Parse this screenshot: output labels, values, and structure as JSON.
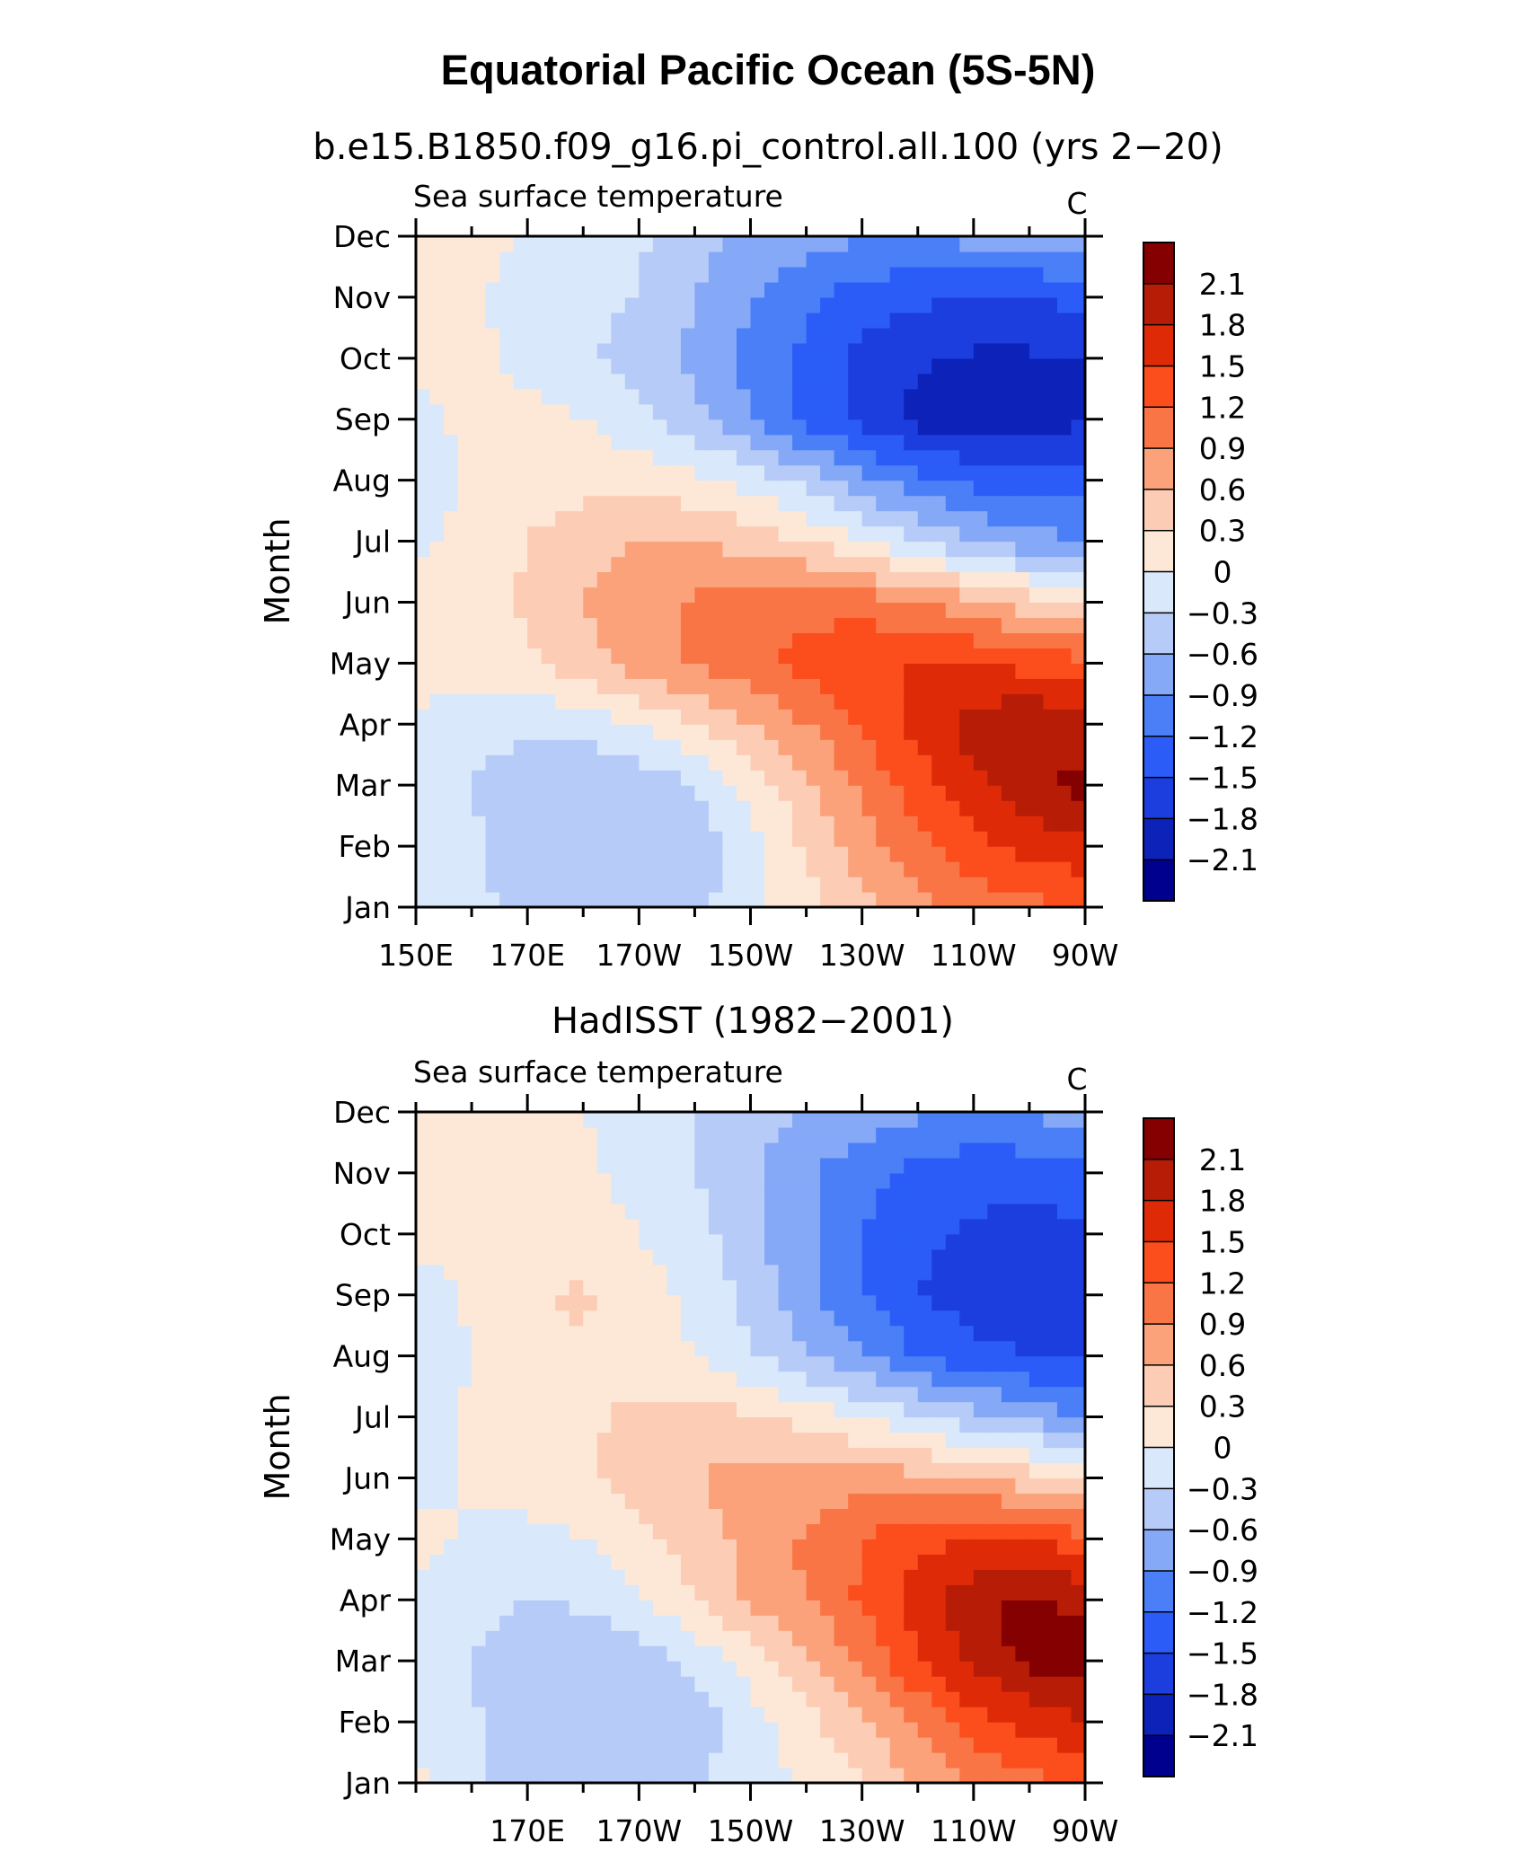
{
  "figure": {
    "title": "Equatorial Pacific Ocean (5S-5N)"
  },
  "chart_data": [
    {
      "type": "heatmap",
      "subtitle": "b.e15.B1850.f09_g16.pi_control.all.100 (yrs 2−20)",
      "left_label": "Sea surface temperature",
      "units_label": "C",
      "ylabel": "Month",
      "xlabel": "",
      "y_ticks": [
        "Jan",
        "Feb",
        "Mar",
        "Apr",
        "May",
        "Jun",
        "Jul",
        "Aug",
        "Sep",
        "Oct",
        "Nov",
        "Dec"
      ],
      "x_ticks": [
        {
          "lon": 150,
          "label": "150E"
        },
        {
          "lon": 170,
          "label": "170E"
        },
        {
          "lon": 190,
          "label": "170W"
        },
        {
          "lon": 210,
          "label": "150W"
        },
        {
          "lon": 230,
          "label": "130W"
        },
        {
          "lon": 250,
          "label": "110W"
        },
        {
          "lon": 270,
          "label": "90W"
        }
      ],
      "x_range": [
        150,
        270
      ],
      "lons": [
        150,
        160,
        170,
        180,
        190,
        200,
        210,
        220,
        230,
        240,
        250,
        260,
        270
      ],
      "values": [
        [
          -0.15,
          -0.2,
          -0.4,
          -0.5,
          -0.5,
          -0.4,
          -0.1,
          0.2,
          0.5,
          0.8,
          1.0,
          1.1,
          1.2
        ],
        [
          -0.2,
          -0.25,
          -0.5,
          -0.55,
          -0.55,
          -0.5,
          -0.1,
          0.35,
          0.75,
          1.1,
          1.4,
          1.6,
          1.7
        ],
        [
          -0.15,
          -0.3,
          -0.5,
          -0.55,
          -0.5,
          -0.3,
          0.1,
          0.5,
          0.95,
          1.35,
          1.75,
          2.0,
          2.2
        ],
        [
          -0.05,
          -0.15,
          -0.25,
          -0.2,
          0.0,
          0.3,
          0.6,
          0.9,
          1.25,
          1.6,
          1.9,
          2.1,
          1.9
        ],
        [
          0.1,
          0.15,
          0.25,
          0.45,
          0.75,
          0.95,
          1.1,
          1.3,
          1.5,
          1.5,
          1.5,
          1.4,
          1.3
        ],
        [
          0.1,
          0.2,
          0.35,
          0.6,
          0.8,
          0.95,
          1.05,
          1.1,
          1.05,
          0.9,
          0.7,
          0.45,
          0.2
        ],
        [
          -0.05,
          0.1,
          0.3,
          0.5,
          0.6,
          0.6,
          0.5,
          0.3,
          0.05,
          -0.3,
          -0.6,
          -0.8,
          -0.9
        ],
        [
          -0.2,
          0.05,
          0.15,
          0.2,
          0.2,
          0.1,
          -0.1,
          -0.4,
          -0.8,
          -1.1,
          -1.3,
          -1.35,
          -1.3
        ],
        [
          -0.05,
          0.05,
          0.1,
          0.0,
          -0.2,
          -0.5,
          -0.9,
          -1.3,
          -1.6,
          -1.9,
          -1.95,
          -1.95,
          -1.85
        ],
        [
          0.05,
          0.1,
          -0.1,
          -0.25,
          -0.4,
          -0.7,
          -1.0,
          -1.3,
          -1.6,
          -1.75,
          -1.85,
          -1.85,
          -1.8
        ],
        [
          0.1,
          0.05,
          -0.15,
          -0.25,
          -0.3,
          -0.6,
          -0.85,
          -1.1,
          -1.35,
          -1.45,
          -1.5,
          -1.5,
          -1.4
        ],
        [
          0.1,
          0.1,
          0.0,
          -0.1,
          -0.25,
          -0.5,
          -0.7,
          -0.8,
          -0.85,
          -0.85,
          -0.8,
          -0.75,
          -0.7
        ]
      ]
    },
    {
      "type": "heatmap",
      "subtitle": "HadISST (1982−2001)",
      "left_label": "Sea surface temperature",
      "units_label": "C",
      "ylabel": "Month",
      "xlabel": "",
      "y_ticks": [
        "Jan",
        "Feb",
        "Mar",
        "Apr",
        "May",
        "Jun",
        "Jul",
        "Aug",
        "Sep",
        "Oct",
        "Nov",
        "Dec"
      ],
      "x_ticks": [
        {
          "lon": 170,
          "label": "170E"
        },
        {
          "lon": 190,
          "label": "170W"
        },
        {
          "lon": 210,
          "label": "150W"
        },
        {
          "lon": 230,
          "label": "130W"
        },
        {
          "lon": 250,
          "label": "110W"
        },
        {
          "lon": 270,
          "label": "90W"
        }
      ],
      "x_range": [
        150,
        270
      ],
      "lons": [
        150,
        160,
        170,
        180,
        190,
        200,
        210,
        220,
        230,
        240,
        250,
        260,
        270
      ],
      "values": [
        [
          0.05,
          -0.2,
          -0.5,
          -0.55,
          -0.5,
          -0.35,
          -0.15,
          0.05,
          0.3,
          0.6,
          0.9,
          1.1,
          1.3
        ],
        [
          -0.1,
          -0.25,
          -0.55,
          -0.6,
          -0.6,
          -0.45,
          -0.15,
          0.2,
          0.55,
          0.95,
          1.35,
          1.6,
          1.8
        ],
        [
          -0.15,
          -0.3,
          -0.55,
          -0.6,
          -0.45,
          -0.2,
          0.15,
          0.5,
          0.95,
          1.45,
          1.9,
          2.2,
          2.3
        ],
        [
          -0.05,
          -0.2,
          -0.3,
          -0.25,
          -0.05,
          0.3,
          0.65,
          0.9,
          1.25,
          1.65,
          2.0,
          2.2,
          2.0
        ],
        [
          0.1,
          -0.05,
          -0.1,
          0.0,
          0.2,
          0.45,
          0.7,
          0.95,
          1.2,
          1.4,
          1.5,
          1.5,
          1.3
        ],
        [
          -0.1,
          0.05,
          0.15,
          0.25,
          0.45,
          0.6,
          0.7,
          0.75,
          0.75,
          0.7,
          0.6,
          0.45,
          0.25
        ],
        [
          -0.15,
          0.05,
          0.15,
          0.25,
          0.35,
          0.4,
          0.35,
          0.2,
          0.0,
          -0.25,
          -0.5,
          -0.7,
          -0.9
        ],
        [
          -0.2,
          0.0,
          0.2,
          0.25,
          0.2,
          0.0,
          -0.25,
          -0.55,
          -0.9,
          -1.2,
          -1.4,
          -1.5,
          -1.5
        ],
        [
          -0.15,
          0.05,
          0.25,
          0.35,
          0.15,
          -0.1,
          -0.4,
          -0.8,
          -1.2,
          -1.5,
          -1.65,
          -1.7,
          -1.6
        ],
        [
          0.1,
          0.15,
          0.15,
          0.1,
          0.0,
          -0.2,
          -0.5,
          -0.85,
          -1.2,
          -1.45,
          -1.55,
          -1.6,
          -1.55
        ],
        [
          0.1,
          0.15,
          0.1,
          0.05,
          -0.1,
          -0.3,
          -0.55,
          -0.85,
          -1.1,
          -1.3,
          -1.4,
          -1.4,
          -1.35
        ],
        [
          0.1,
          0.1,
          0.05,
          0.0,
          -0.15,
          -0.3,
          -0.45,
          -0.6,
          -0.75,
          -0.85,
          -0.9,
          -0.85,
          -0.75
        ]
      ]
    }
  ],
  "colorbar": {
    "labels": [
      "2.1",
      "1.8",
      "1.5",
      "1.2",
      "0.9",
      "0.6",
      "0.3",
      "0",
      "−0.3",
      "−0.6",
      "−0.9",
      "−1.2",
      "−1.5",
      "−1.8",
      "−2.1"
    ],
    "levels": [
      -2.1,
      -1.8,
      -1.5,
      -1.2,
      -0.9,
      -0.6,
      -0.3,
      0,
      0.3,
      0.6,
      0.9,
      1.2,
      1.5,
      1.8,
      2.1
    ],
    "colors": [
      "#00008f",
      "#0d22b8",
      "#1c3ede",
      "#2b5cf7",
      "#4a7ff7",
      "#85a8f7",
      "#b6cbf7",
      "#d9e8fa",
      "#fde8d7",
      "#fcccb4",
      "#fba27b",
      "#f97545",
      "#fc4d1c",
      "#df2a08",
      "#b71c07",
      "#850000"
    ]
  }
}
